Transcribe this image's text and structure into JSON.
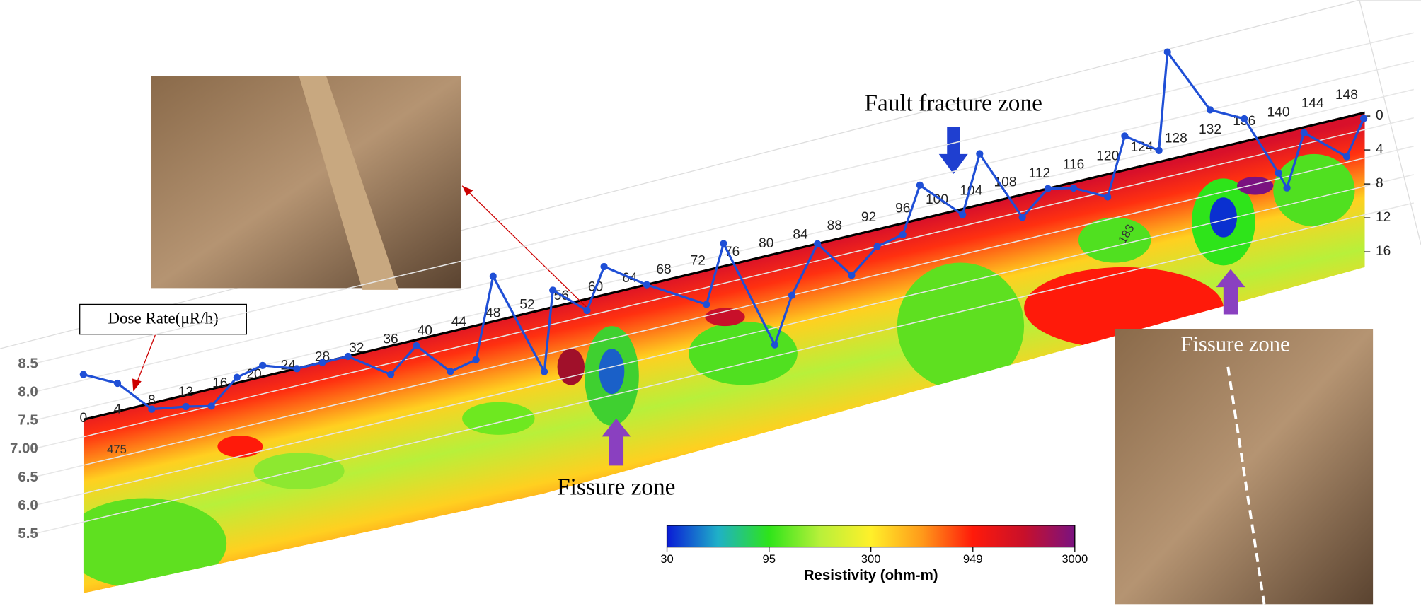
{
  "chart_data": {
    "type": "line",
    "series": [
      {
        "name": "Dose Rate(μR/h)",
        "color": "#1f4fd6",
        "values": [
          8.1,
          7.8,
          7.2,
          7.1,
          7.0,
          7.4,
          7.5,
          7.3,
          7.3,
          7.3,
          6.8,
          7.2,
          6.6,
          6.7,
          8.1,
          6.2,
          7.6,
          7.1,
          7.8,
          7.3,
          6.7,
          7.7,
          5.7,
          6.5,
          7.3,
          6.6,
          7.0,
          7.1,
          7.9,
          7.2,
          8.2,
          6.9,
          7.3,
          7.2,
          6.9,
          7.9,
          7.5,
          9.2,
          8.0,
          7.7,
          6.6,
          6.3,
          7.2,
          6.6,
          7.2
        ]
      }
    ],
    "x": [
      0,
      4,
      8,
      12,
      15,
      18,
      21,
      25,
      28,
      31,
      36,
      39,
      43,
      46,
      48,
      54,
      55,
      59,
      61,
      66,
      73,
      75,
      81,
      83,
      86,
      90,
      93,
      96,
      98,
      103,
      105,
      110,
      113,
      116,
      120,
      122,
      126,
      127,
      132,
      136,
      140,
      141,
      143,
      148,
      150
    ],
    "xlim": [
      0,
      148
    ],
    "xticks": [
      0,
      4,
      8,
      12,
      16,
      20,
      24,
      28,
      32,
      36,
      40,
      44,
      48,
      52,
      56,
      60,
      64,
      68,
      72,
      76,
      80,
      84,
      88,
      92,
      96,
      100,
      104,
      108,
      112,
      116,
      120,
      124,
      128,
      132,
      136,
      140,
      144,
      148
    ],
    "ylim": [
      5.5,
      8.5
    ],
    "yticks": [
      8.5,
      {
        "value": 8.0,
        "label": "8.0"
      },
      7.5,
      {
        "value": 7.0,
        "label": "7.00"
      },
      6.5,
      {
        "value": 6.0,
        "label": "6.0"
      },
      5.5
    ],
    "grid": true,
    "y2lim": [
      0,
      16
    ],
    "y2ticks": [
      0,
      4,
      8,
      12,
      16
    ],
    "annotations": [
      "Fault fracture zone",
      "Fissure zone",
      "Fissure zone"
    ],
    "contour_labels": [
      "475",
      "183"
    ],
    "colorbar": {
      "title": "Resistivity (ohm-m)",
      "lim": [
        30,
        3000
      ],
      "ticks": [
        30,
        95,
        300,
        949,
        3000
      ],
      "log": true,
      "colors": [
        "#0a1bd6",
        "#1fb0c8",
        "#2ee41a",
        "#b8f03a",
        "#fff02a",
        "#ff9a1a",
        "#ff1a0a",
        "#c8102a",
        "#7a1280"
      ]
    }
  }
}
